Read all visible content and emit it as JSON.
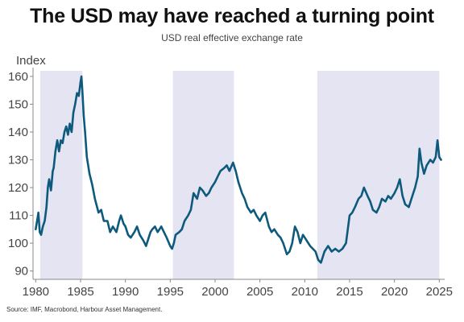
{
  "header": {
    "title": "The USD may have reached a turning point",
    "subtitle": "USD real effective exchange rate"
  },
  "footer": {
    "source": "Source: IMF, Macrobond, Harbour Asset Management."
  },
  "colors": {
    "line": "#0d5a7c",
    "shade": "#e4e4f2",
    "axis": "#888888"
  },
  "chart_data": {
    "type": "line",
    "title": "The USD may have reached a turning point",
    "subtitle": "USD real effective exchange rate",
    "ylabel": "Index",
    "xlabel": "",
    "xlim": [
      1979.7,
      2025.6
    ],
    "ylim": [
      87,
      162
    ],
    "x_ticks": [
      "1980",
      "1985",
      "1990",
      "1995",
      "2000",
      "2005",
      "2010",
      "2015",
      "2020",
      "2025"
    ],
    "y_ticks": [
      "90",
      "100",
      "110",
      "120",
      "130",
      "140",
      "150",
      "160"
    ],
    "shaded_periods": [
      [
        1980.5,
        1985.2
      ],
      [
        1995.3,
        2002.1
      ],
      [
        2011.4,
        2025.0
      ]
    ],
    "grid": false,
    "legend": "none",
    "series": [
      {
        "x": [
          1980.0,
          1980.2,
          1980.3,
          1980.45,
          1980.6,
          1980.8,
          1981.0,
          1981.2,
          1981.35,
          1981.5,
          1981.7,
          1981.9,
          1982.0,
          1982.2,
          1982.4,
          1982.6,
          1982.8,
          1983.0,
          1983.2,
          1983.4,
          1983.6,
          1983.8,
          1984.0,
          1984.2,
          1984.4,
          1984.6,
          1984.8,
          1985.0,
          1985.1,
          1985.2,
          1985.35,
          1985.5,
          1985.7,
          1986.0,
          1986.3,
          1986.6,
          1987.0,
          1987.3,
          1987.6,
          1988.0,
          1988.3,
          1988.6,
          1989.0,
          1989.3,
          1989.5,
          1989.8,
          1990.0,
          1990.3,
          1990.6,
          1991.0,
          1991.3,
          1991.6,
          1992.0,
          1992.3,
          1992.6,
          1992.8,
          1993.0,
          1993.3,
          1993.6,
          1994.0,
          1994.3,
          1994.6,
          1995.0,
          1995.2,
          1995.4,
          1995.6,
          1996.0,
          1996.3,
          1996.6,
          1997.0,
          1997.3,
          1997.6,
          1998.0,
          1998.3,
          1998.6,
          1999.0,
          1999.3,
          1999.6,
          2000.0,
          2000.3,
          2000.6,
          2001.0,
          2001.3,
          2001.6,
          2002.0,
          2002.3,
          2002.6,
          2003.0,
          2003.3,
          2003.6,
          2004.0,
          2004.3,
          2004.6,
          2005.0,
          2005.3,
          2005.6,
          2006.0,
          2006.3,
          2006.6,
          2007.0,
          2007.3,
          2007.6,
          2008.0,
          2008.3,
          2008.6,
          2008.9,
          2009.2,
          2009.5,
          2009.8,
          2010.2,
          2010.6,
          2010.9,
          2011.2,
          2011.5,
          2011.8,
          2012.2,
          2012.6,
          2013.0,
          2013.4,
          2013.8,
          2014.2,
          2014.6,
          2015.0,
          2015.3,
          2015.6,
          2016.0,
          2016.3,
          2016.6,
          2017.0,
          2017.3,
          2017.6,
          2018.0,
          2018.3,
          2018.6,
          2019.0,
          2019.3,
          2019.6,
          2020.0,
          2020.3,
          2020.6,
          2020.9,
          2021.2,
          2021.6,
          2022.0,
          2022.3,
          2022.6,
          2022.8,
          2023.0,
          2023.3,
          2023.6,
          2024.0,
          2024.3,
          2024.6,
          2024.8,
          2025.0,
          2025.2
        ],
        "y": [
          105,
          109,
          111,
          104,
          103,
          106,
          108,
          113,
          120,
          123,
          119,
          126,
          127,
          133,
          137,
          133,
          137,
          136,
          140,
          142,
          139,
          143,
          140,
          147,
          150,
          154,
          153,
          158,
          160,
          155,
          146,
          140,
          131,
          125,
          121,
          116,
          111,
          112,
          108,
          108,
          104,
          106,
          104,
          108,
          110,
          107,
          106,
          103,
          102,
          104,
          106,
          103,
          101,
          99,
          102,
          104,
          105,
          106,
          104,
          106,
          104,
          102,
          99,
          98,
          100,
          103,
          104,
          105,
          108,
          110,
          112,
          118,
          116,
          120,
          119,
          117,
          118,
          120,
          122,
          124,
          126,
          127,
          128,
          126,
          129,
          126,
          122,
          118,
          116,
          113,
          111,
          112,
          110,
          108,
          110,
          111,
          106,
          104,
          105,
          103,
          102,
          100,
          96,
          97,
          100,
          106,
          104,
          100,
          103,
          101,
          99,
          98,
          97,
          94,
          93,
          97,
          99,
          97,
          98,
          97,
          98,
          100,
          110,
          111,
          113,
          116,
          117,
          120,
          117,
          115,
          112,
          111,
          113,
          116,
          115,
          117,
          116,
          118,
          120,
          123,
          117,
          114,
          113,
          117,
          120,
          124,
          134,
          129,
          125,
          128,
          130,
          129,
          131,
          137,
          131,
          130
        ]
      }
    ]
  }
}
